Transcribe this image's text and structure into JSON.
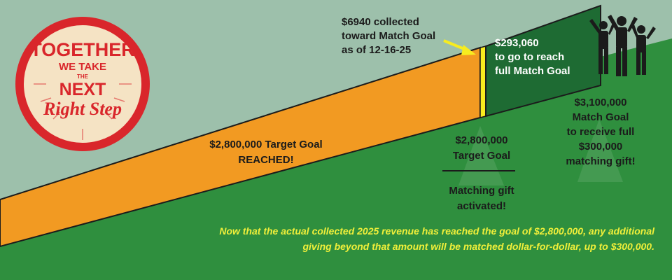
{
  "logo": {
    "line1": "TOGETHER",
    "line2": "WE TAKE",
    "line3": "THE",
    "line4": "NEXT",
    "line5": "Right Step"
  },
  "collected_note": {
    "line1": "$6940 collected",
    "line2": "toward Match Goal",
    "line3": "as of 12-16-25"
  },
  "remaining_note": {
    "line1": "$293,060",
    "line2": "to go to reach",
    "line3": "full Match Goal"
  },
  "target_reached": {
    "line1": "$2,800,000 Target Goal",
    "line2": "REACHED!"
  },
  "target_goal_note": {
    "line1": "$2,800,000",
    "line2": "Target Goal"
  },
  "matching_note": {
    "line1": "Matching gift",
    "line2": "activated!"
  },
  "match_goal_note": {
    "line1": "$3,100,000",
    "line2": "Match Goal",
    "line3": "to receive full",
    "line4": "$300,000",
    "line5": "matching gift!"
  },
  "footer_note": {
    "line1": "Now that  the actual collected 2025 revenue has reached the goal of $2,800,000, any additional",
    "line2": "giving beyond that amount will be matched dollar-for-dollar, up to $300,000."
  },
  "colors": {
    "sky": "#9dc0ab",
    "grass": "#2f8f3e",
    "orange_bar": "#f29a22",
    "dark_green_bar": "#1e6b33",
    "yellow_marker": "#f7ec1f",
    "logo_red": "#d9262b",
    "logo_cream": "#f5e3c4",
    "footer_text": "#f0ef3a"
  },
  "icons": {
    "arrow": "arrow-right-icon",
    "people": "people-celebrating-icon"
  }
}
